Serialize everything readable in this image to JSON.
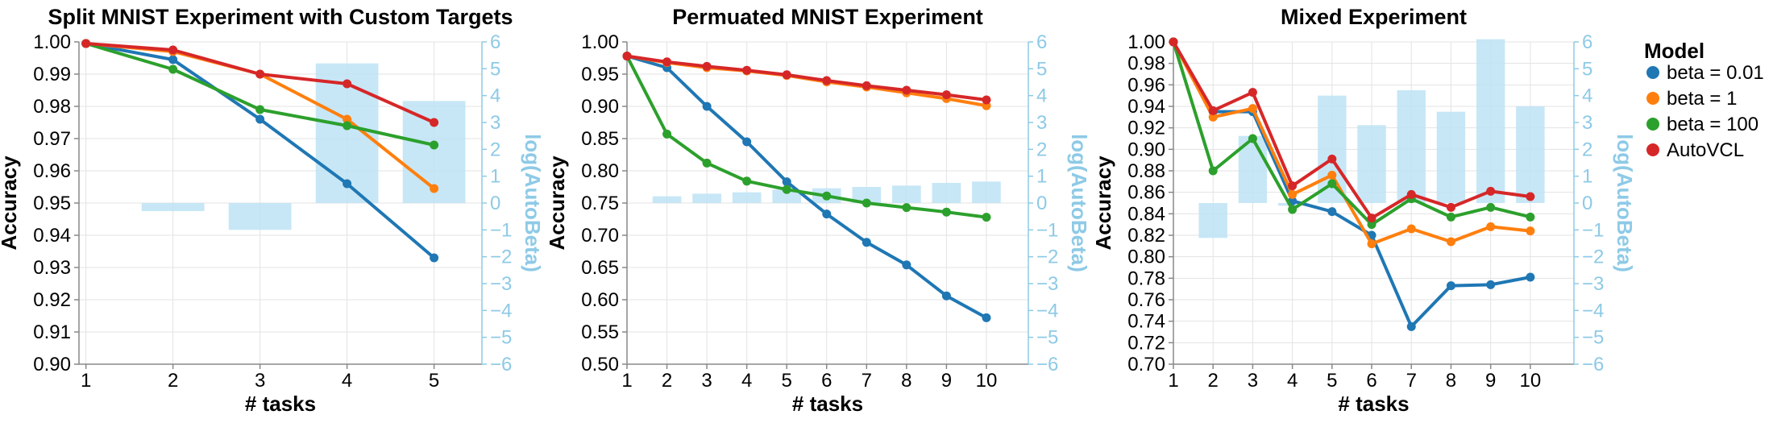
{
  "chart_data": [
    {
      "type": "line",
      "title": "Split MNIST Experiment with Custom Targets",
      "xlabel": "# tasks",
      "ylabel": "Accuracy",
      "y2label": "log(AutoBeta)",
      "x": [
        1,
        2,
        3,
        4,
        5
      ],
      "xticks": [
        "1",
        "2",
        "3",
        "4",
        "5"
      ],
      "ylim": [
        0.9,
        1.0
      ],
      "yticks": [
        "0.90",
        "0.91",
        "0.92",
        "0.93",
        "0.94",
        "0.95",
        "0.96",
        "0.97",
        "0.98",
        "0.99",
        "1.00"
      ],
      "y2lim": [
        -6,
        6
      ],
      "y2ticks": [
        "−6",
        "−5",
        "−4",
        "−3",
        "−2",
        "−1",
        "0",
        "1",
        "2",
        "3",
        "4",
        "5",
        "6"
      ],
      "bars": {
        "name": "log(AutoBeta)",
        "x": [
          2,
          3,
          4,
          5
        ],
        "values": [
          -0.3,
          -1.0,
          5.2,
          3.8
        ]
      },
      "series": [
        {
          "name": "beta = 0.01",
          "values": [
            0.9995,
            0.9945,
            0.976,
            0.956,
            0.933
          ]
        },
        {
          "name": "beta = 1",
          "values": [
            0.9995,
            0.997,
            0.99,
            0.976,
            0.9545
          ]
        },
        {
          "name": "beta = 100",
          "values": [
            0.9995,
            0.9915,
            0.979,
            0.974,
            0.968
          ]
        },
        {
          "name": "AutoVCL",
          "values": [
            0.9995,
            0.9975,
            0.99,
            0.987,
            0.975
          ]
        }
      ]
    },
    {
      "type": "line",
      "title": "Permuated MNIST Experiment",
      "xlabel": "# tasks",
      "ylabel": "Accuracy",
      "y2label": "log(AutoBeta)",
      "x": [
        1,
        2,
        3,
        4,
        5,
        6,
        7,
        8,
        9,
        10
      ],
      "xticks": [
        "1",
        "2",
        "3",
        "4",
        "5",
        "6",
        "7",
        "8",
        "9",
        "10"
      ],
      "ylim": [
        0.5,
        1.0
      ],
      "yticks": [
        "0.50",
        "0.55",
        "0.60",
        "0.65",
        "0.70",
        "0.75",
        "0.80",
        "0.85",
        "0.90",
        "0.95",
        "1.00"
      ],
      "y2lim": [
        -6,
        6
      ],
      "y2ticks": [
        "−6",
        "−5",
        "−4",
        "−3",
        "−2",
        "−1",
        "0",
        "1",
        "2",
        "3",
        "4",
        "5",
        "6"
      ],
      "bars": {
        "name": "log(AutoBeta)",
        "x": [
          2,
          3,
          4,
          5,
          6,
          7,
          8,
          9,
          10
        ],
        "values": [
          0.25,
          0.35,
          0.4,
          0.5,
          0.55,
          0.6,
          0.65,
          0.75,
          0.8
        ]
      },
      "series": [
        {
          "name": "beta = 0.01",
          "values": [
            0.978,
            0.96,
            0.9,
            0.845,
            0.783,
            0.733,
            0.689,
            0.654,
            0.606,
            0.572
          ]
        },
        {
          "name": "beta = 1",
          "values": [
            0.978,
            0.968,
            0.96,
            0.955,
            0.948,
            0.938,
            0.93,
            0.921,
            0.912,
            0.901
          ]
        },
        {
          "name": "beta = 100",
          "values": [
            0.978,
            0.857,
            0.812,
            0.784,
            0.771,
            0.761,
            0.75,
            0.743,
            0.736,
            0.728
          ]
        },
        {
          "name": "AutoVCL",
          "values": [
            0.978,
            0.969,
            0.962,
            0.956,
            0.949,
            0.94,
            0.932,
            0.925,
            0.918,
            0.91
          ]
        }
      ]
    },
    {
      "type": "line",
      "title": "Mixed Experiment",
      "xlabel": "# tasks",
      "ylabel": "Accuracy",
      "y2label": "log(AutoBeta)",
      "x": [
        1,
        2,
        3,
        4,
        5,
        6,
        7,
        8,
        9,
        10
      ],
      "xticks": [
        "1",
        "2",
        "3",
        "4",
        "5",
        "6",
        "7",
        "8",
        "9",
        "10"
      ],
      "ylim": [
        0.7,
        1.0
      ],
      "yticks": [
        "0.70",
        "0.72",
        "0.74",
        "0.76",
        "0.78",
        "0.80",
        "0.82",
        "0.84",
        "0.86",
        "0.88",
        "0.90",
        "0.92",
        "0.94",
        "0.96",
        "0.98",
        "1.00"
      ],
      "y2lim": [
        -6,
        6
      ],
      "y2ticks": [
        "−6",
        "−5",
        "−4",
        "−3",
        "−2",
        "−1",
        "0",
        "1",
        "2",
        "3",
        "4",
        "5",
        "6"
      ],
      "bars": {
        "name": "log(AutoBeta)",
        "x": [
          2,
          3,
          4,
          5,
          6,
          7,
          8,
          9,
          10
        ],
        "values": [
          -1.3,
          2.5,
          -0.1,
          4.0,
          2.9,
          4.2,
          3.4,
          6.1,
          3.6
        ]
      },
      "series": [
        {
          "name": "beta = 0.01",
          "values": [
            1.0,
            0.935,
            0.935,
            0.852,
            0.842,
            0.82,
            0.735,
            0.773,
            0.774,
            0.781
          ]
        },
        {
          "name": "beta = 1",
          "values": [
            1.0,
            0.93,
            0.938,
            0.858,
            0.876,
            0.812,
            0.826,
            0.814,
            0.828,
            0.824
          ]
        },
        {
          "name": "beta = 100",
          "values": [
            1.0,
            0.88,
            0.91,
            0.844,
            0.868,
            0.83,
            0.854,
            0.837,
            0.846,
            0.837
          ]
        },
        {
          "name": "AutoVCL",
          "values": [
            1.0,
            0.936,
            0.953,
            0.866,
            0.891,
            0.836,
            0.858,
            0.846,
            0.861,
            0.856
          ]
        }
      ]
    }
  ],
  "legend": {
    "title": "Model",
    "placement": "right",
    "items": [
      {
        "label": "beta = 0.01",
        "color": "#1f77b4"
      },
      {
        "label": "beta = 1",
        "color": "#ff7f0e"
      },
      {
        "label": "beta = 100",
        "color": "#2ca02c"
      },
      {
        "label": "AutoVCL",
        "color": "#d62728"
      }
    ]
  },
  "colors": {
    "bars": "#bde3f4",
    "right_axis": "#8ecae6",
    "grid": "#e3e3e3"
  }
}
